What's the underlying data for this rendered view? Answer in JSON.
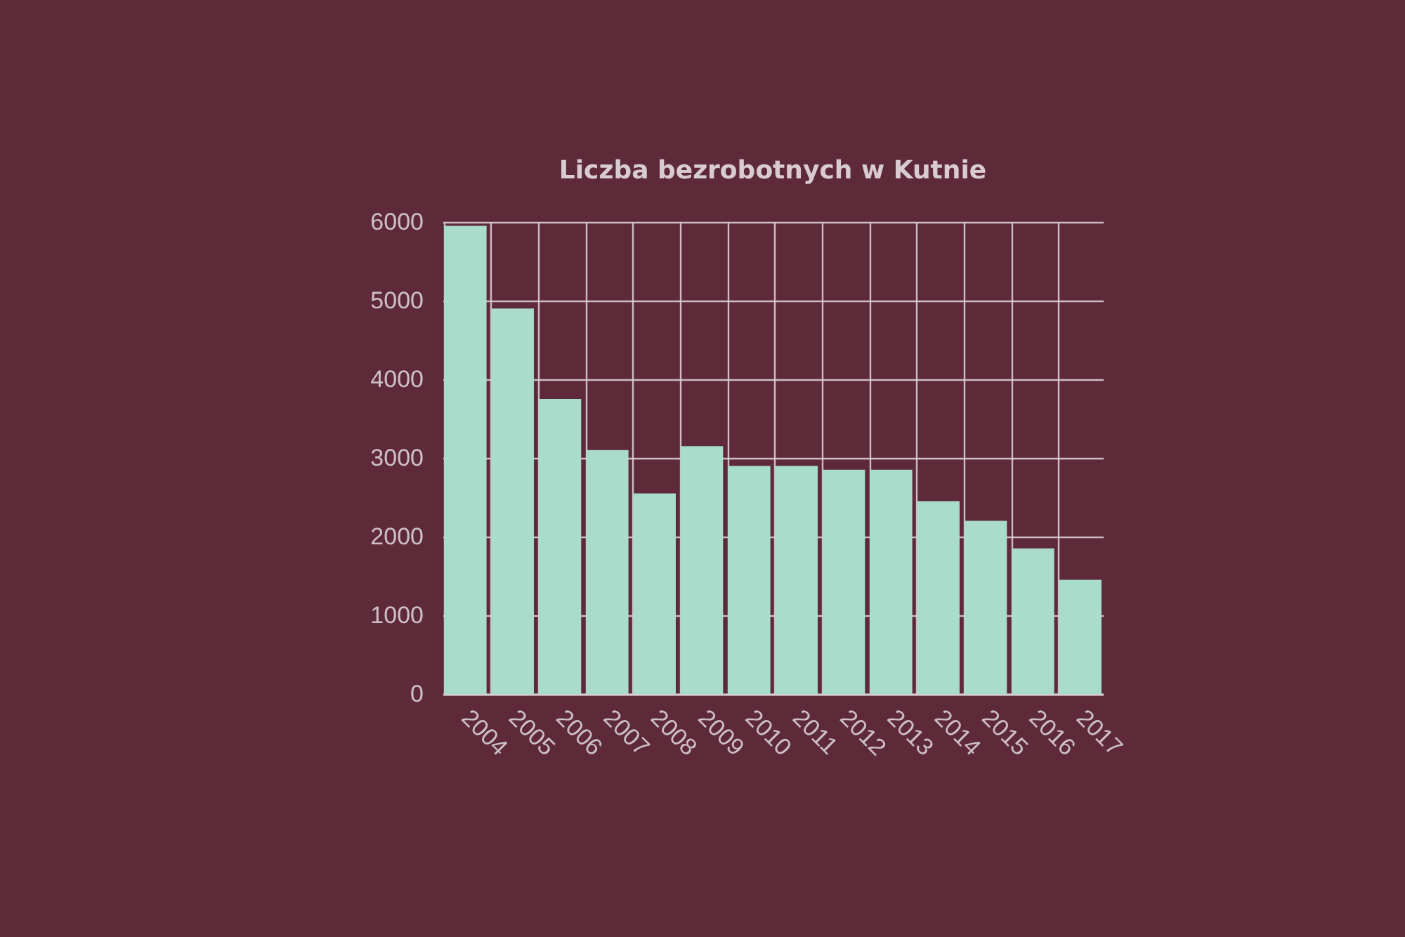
{
  "chart_data": {
    "type": "bar",
    "title": "Liczba bezrobotnych w Kutnie",
    "categories": [
      "2004",
      "2005",
      "2006",
      "2007",
      "2008",
      "2009",
      "2010",
      "2011",
      "2012",
      "2013",
      "2014",
      "2015",
      "2016",
      "2017"
    ],
    "values": [
      5950,
      4900,
      3750,
      3100,
      2550,
      3150,
      2900,
      2900,
      2850,
      2850,
      2450,
      2200,
      1850,
      1450
    ],
    "color": "#a9dccb",
    "ylim": [
      0,
      6000
    ],
    "yticks": [
      0,
      1000,
      2000,
      3000,
      4000,
      5000,
      6000
    ],
    "grid": true
  }
}
